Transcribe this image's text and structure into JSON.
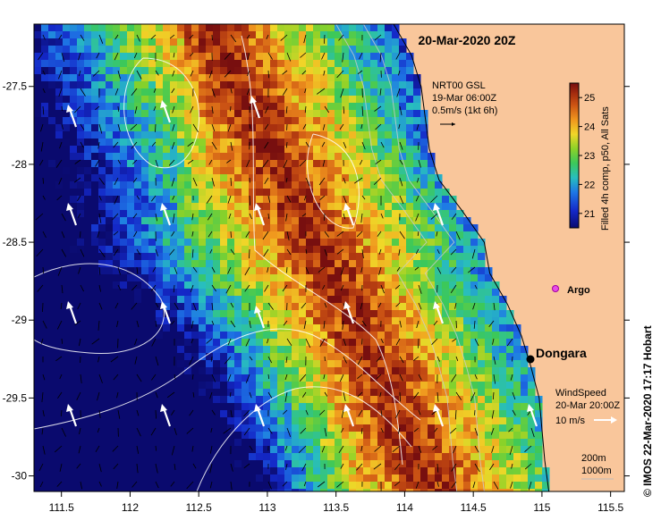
{
  "map": {
    "title": "20-Mar-2020 20Z",
    "lon_ticks": [
      "111.5",
      "112",
      "112.5",
      "113",
      "113.5",
      "114",
      "114.5",
      "115",
      "115.5"
    ],
    "lat_ticks": [
      "-27.5",
      "-28",
      "-28.5",
      "-29",
      "-29.5",
      "-30"
    ],
    "lon_range": [
      111.3,
      115.6
    ],
    "lat_range": [
      -30.1,
      -27.1
    ],
    "current_legend": {
      "line1": "NRT00 GSL",
      "line2": "19-Mar 06:00Z",
      "line3": "0.5m/s (1kt 6h)"
    },
    "colorbar": {
      "ticks": [
        "25",
        "24",
        "23",
        "22",
        "21"
      ],
      "label": "Filled 4h comp, p50, All Sats",
      "range": [
        20.5,
        25.5
      ]
    },
    "places": {
      "argo": "Argo",
      "dongara": "Dongara"
    },
    "wind_legend": {
      "line1": "WindSpeed",
      "line2": "20-Mar 20:00Z",
      "line3": "10 m/s"
    },
    "isobath_legend": {
      "line1": "200m",
      "line2": "1000m"
    },
    "credit": "© IMOS 22-Mar-2020 17:17 Hobart",
    "colors": {
      "land": "#f9c69b",
      "warm": "#a03010",
      "cool": "#1a6cd8"
    }
  }
}
